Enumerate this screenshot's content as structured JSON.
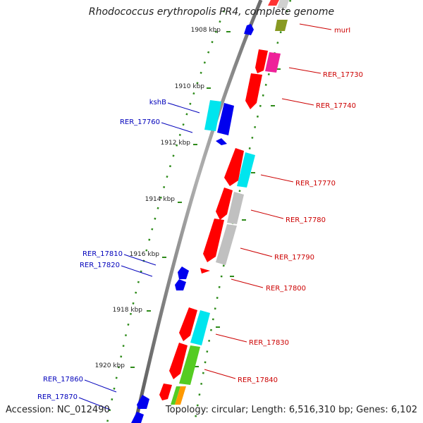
{
  "title": "Rhodococcus erythropolis PR4, complete genome",
  "footer": {
    "accession": "Accession: NC_012490",
    "summary": "Topology: circular; Length: 6,516,310 bp; Genes: 6,102"
  },
  "colors": {
    "backbone": "#8a8a8a",
    "tick": "#2e8b1a",
    "ruler_dots": "#2e8b1a",
    "label_forward": "#cc0000",
    "label_reverse": "#0000bb",
    "red": "#ff0000",
    "blue": "#0000ee",
    "cyan": "#00e5ee",
    "gray": "#c0c0c0",
    "green": "#55cc22",
    "olive": "#889922",
    "magenta": "#ee2299",
    "orange": "#ff9900"
  },
  "ticks": [
    "1908 kbp",
    "1910 kbp",
    "1912 kbp",
    "1914 kbp",
    "1916 kbp",
    "1918 kbp",
    "1920 kbp"
  ],
  "genes_right": [
    "murI",
    "RER_17730",
    "RER_17740",
    "RER_17770",
    "RER_17780",
    "RER_17790",
    "RER_17800",
    "RER_17830",
    "RER_17840"
  ],
  "genes_left": [
    "kshB",
    "RER_17760",
    "RER_17810",
    "RER_17820",
    "RER_17860",
    "RER_17870"
  ]
}
